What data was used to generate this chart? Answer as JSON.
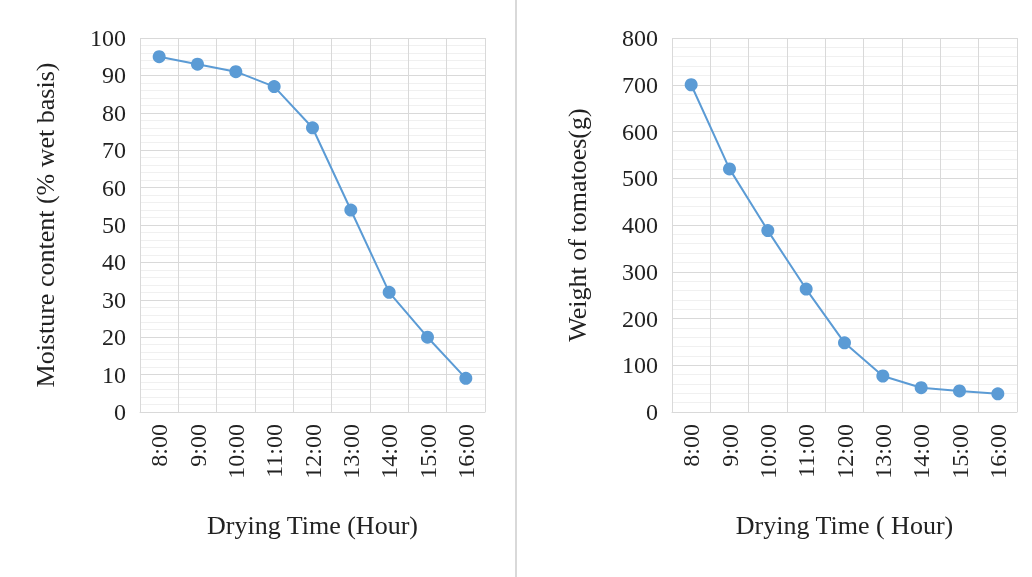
{
  "chart_data": [
    {
      "type": "line",
      "xlabel": "Drying Time (Hour)",
      "ylabel": "Moisture content (% wet basis)",
      "categories": [
        "8:00",
        "9:00",
        "10:00",
        "11:00",
        "12:00",
        "13:00",
        "14:00",
        "15:00",
        "16:00"
      ],
      "series": [
        {
          "color": "#5b9bd5",
          "values": [
            95,
            93,
            91,
            87,
            76,
            54,
            32,
            20,
            9
          ]
        }
      ],
      "ylim": [
        0,
        100
      ],
      "yticks": [
        0,
        10,
        20,
        30,
        40,
        50,
        60,
        70,
        80,
        90,
        100
      ],
      "grid": true,
      "marker": "circle",
      "line_style": "solid"
    },
    {
      "type": "line",
      "xlabel": "Drying Time ( Hour)",
      "ylabel": "Weight of tomatoes(g)",
      "categories": [
        "8:00",
        "9:00",
        "10:00",
        "11:00",
        "12:00",
        "13:00",
        "14:00",
        "15:00",
        "16:00"
      ],
      "series": [
        {
          "color": "#5b9bd5",
          "values": [
            700,
            520,
            388,
            263,
            148,
            77,
            52,
            45,
            39
          ]
        }
      ],
      "ylim": [
        0,
        800
      ],
      "yticks": [
        0,
        100,
        200,
        300,
        400,
        500,
        600,
        700,
        800
      ],
      "grid": true,
      "marker": "circle",
      "line_style": "solid"
    }
  ]
}
